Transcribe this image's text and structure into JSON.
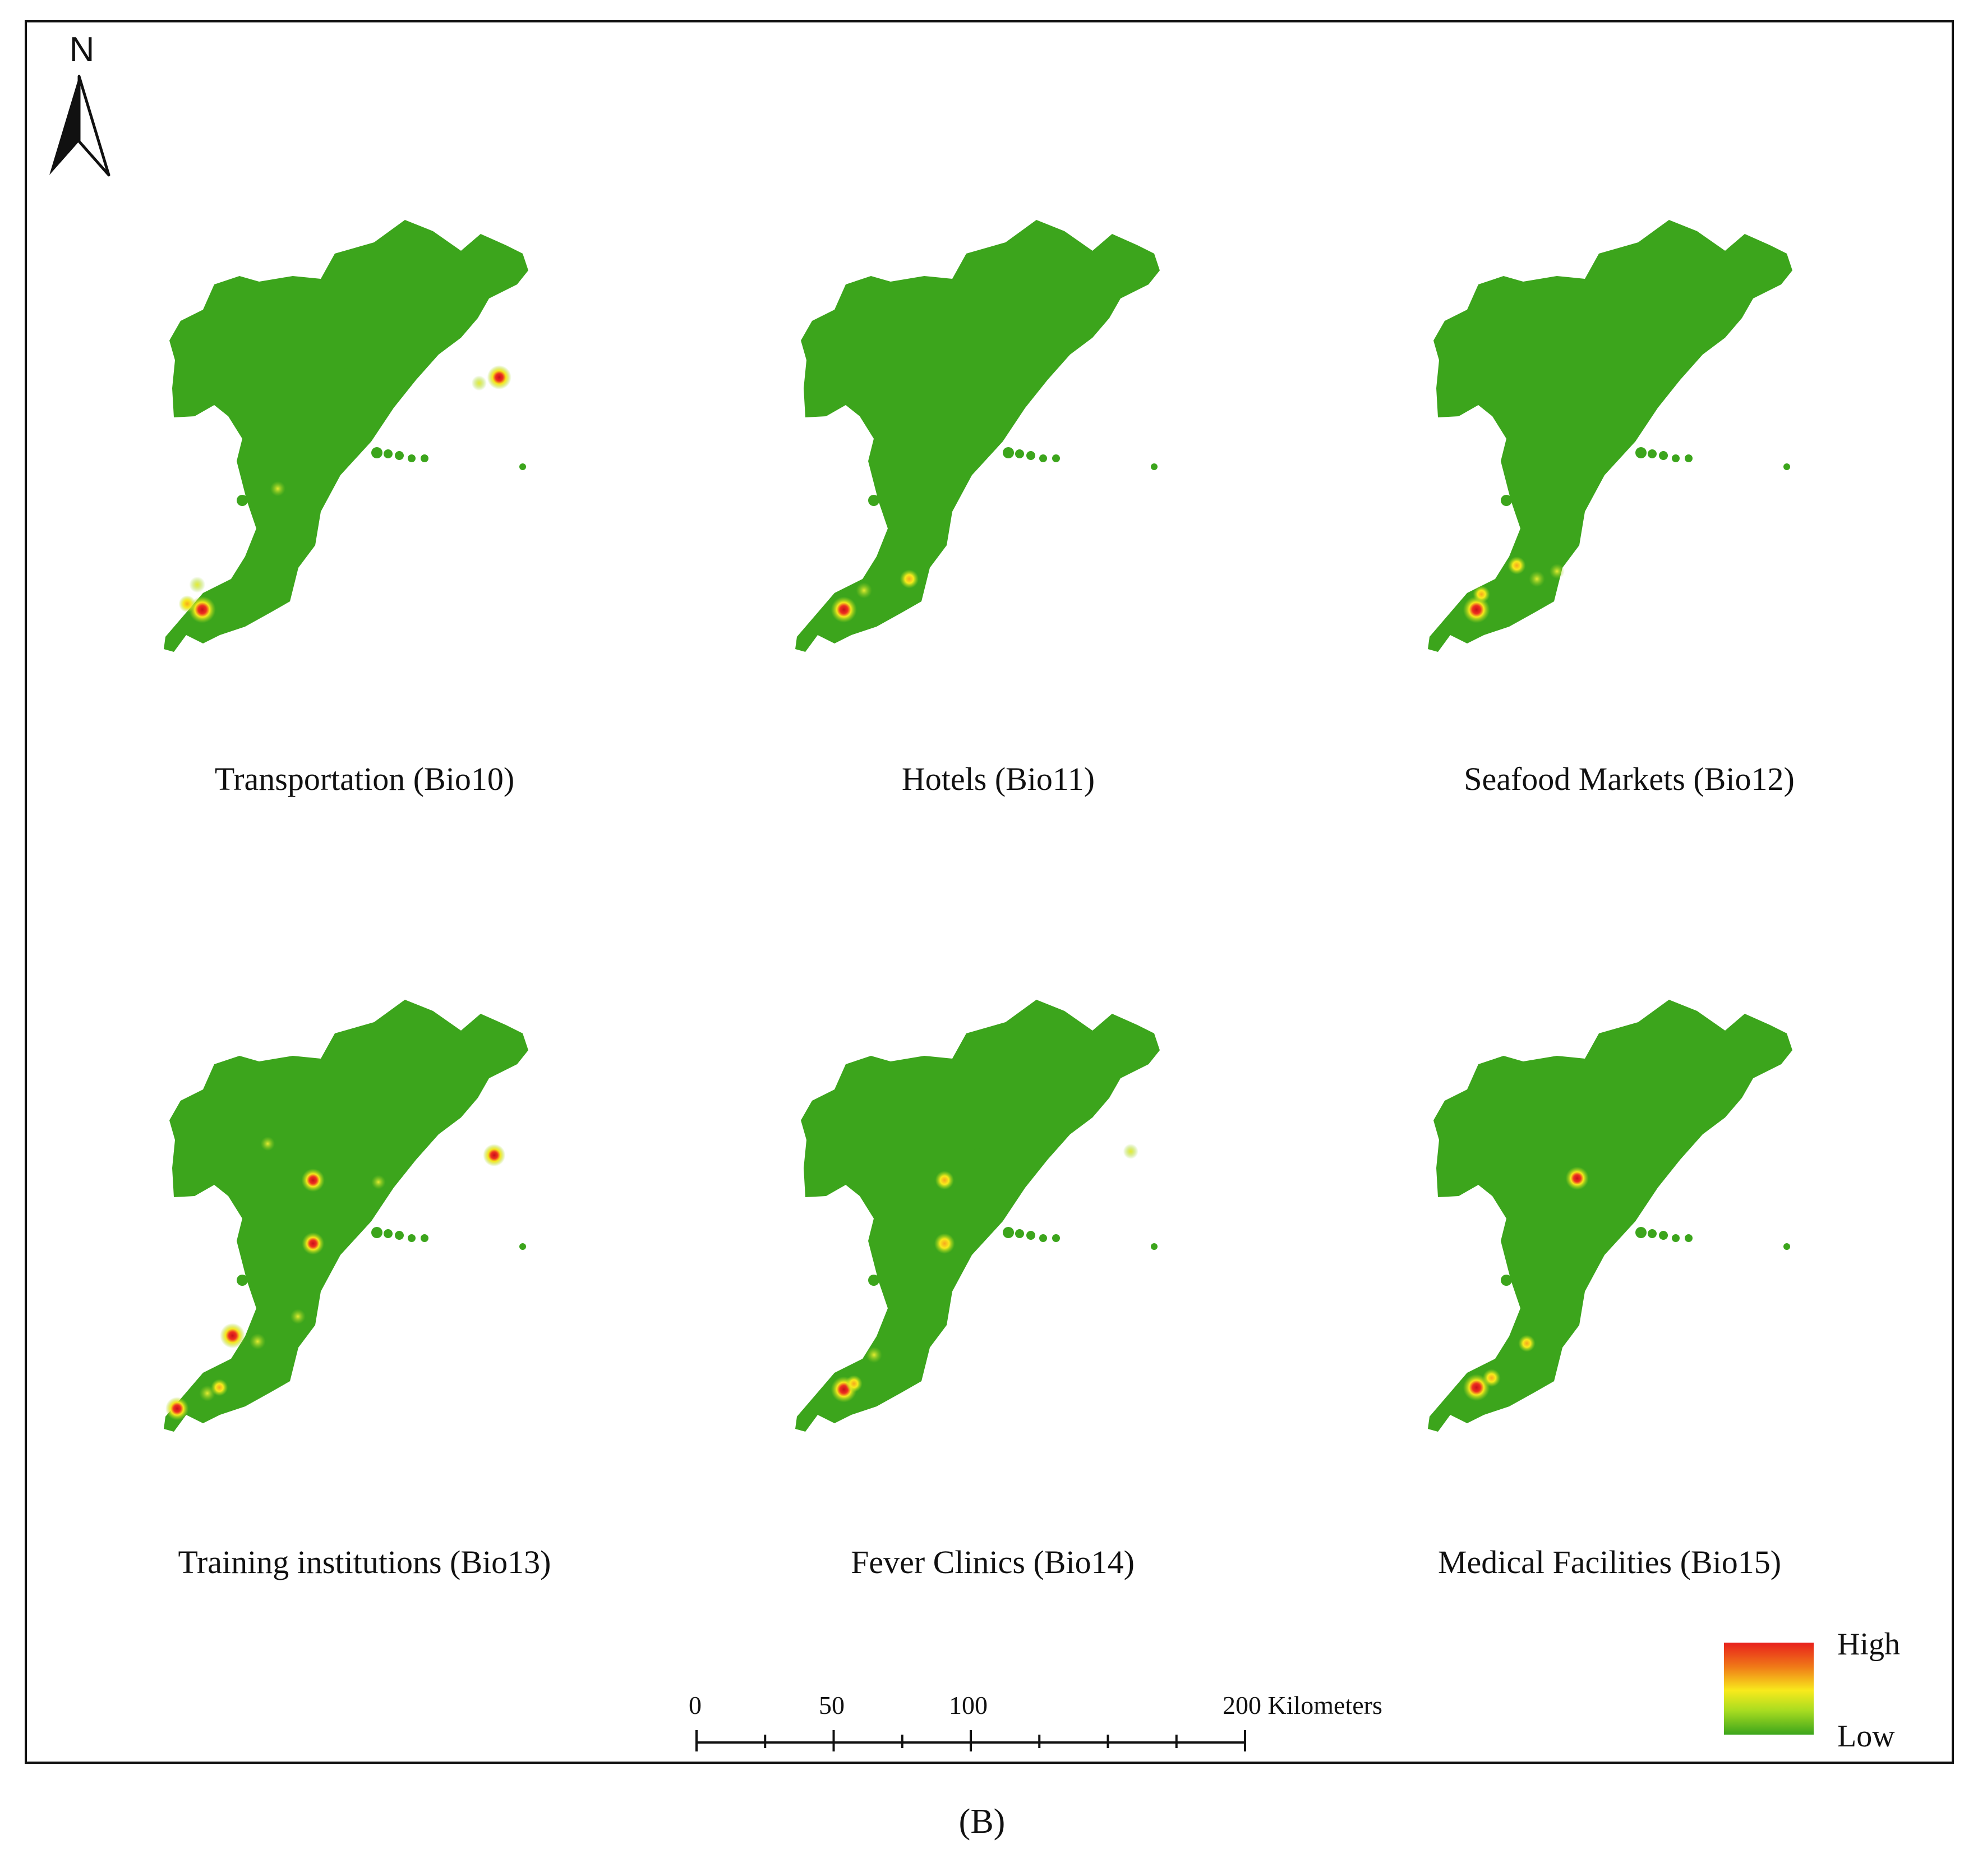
{
  "maps": [
    {
      "title": "Transportation (Bio10)",
      "hotspots": [
        {
          "lon": 121.45,
          "lat": 38.92,
          "level": 1.0
        },
        {
          "lon": 121.3,
          "lat": 38.95,
          "level": 0.45
        },
        {
          "lon": 122.2,
          "lat": 39.55,
          "level": 0.35
        },
        {
          "lon": 124.4,
          "lat": 40.13,
          "level": 0.85
        },
        {
          "lon": 124.2,
          "lat": 40.1,
          "level": 0.35
        },
        {
          "lon": 121.4,
          "lat": 39.05,
          "level": 0.4
        }
      ]
    },
    {
      "title": "Hotels (Bio11)",
      "hotspots": [
        {
          "lon": 121.55,
          "lat": 38.92,
          "level": 0.95
        },
        {
          "lon": 121.75,
          "lat": 39.02,
          "level": 0.4
        },
        {
          "lon": 122.2,
          "lat": 39.08,
          "level": 0.55
        }
      ]
    },
    {
      "title": "Seafood Markets (Bio12)",
      "hotspots": [
        {
          "lon": 121.55,
          "lat": 38.92,
          "level": 1.0
        },
        {
          "lon": 121.6,
          "lat": 39.0,
          "level": 0.45
        },
        {
          "lon": 121.95,
          "lat": 39.15,
          "level": 0.5
        },
        {
          "lon": 122.15,
          "lat": 39.08,
          "level": 0.4
        },
        {
          "lon": 122.35,
          "lat": 39.12,
          "level": 0.35
        }
      ]
    },
    {
      "title": "Training institutions (Bio13)",
      "hotspots": [
        {
          "lon": 121.75,
          "lat": 39.2,
          "level": 0.9
        },
        {
          "lon": 122.0,
          "lat": 39.17,
          "level": 0.4
        },
        {
          "lon": 122.4,
          "lat": 39.3,
          "level": 0.35
        },
        {
          "lon": 121.2,
          "lat": 38.82,
          "level": 0.8
        },
        {
          "lon": 121.5,
          "lat": 38.9,
          "level": 0.4
        },
        {
          "lon": 121.62,
          "lat": 38.93,
          "level": 0.45
        },
        {
          "lon": 122.55,
          "lat": 40.01,
          "level": 0.8
        },
        {
          "lon": 122.55,
          "lat": 39.68,
          "level": 0.75
        },
        {
          "lon": 124.35,
          "lat": 40.14,
          "level": 0.75
        },
        {
          "lon": 123.2,
          "lat": 40.0,
          "level": 0.3
        },
        {
          "lon": 122.1,
          "lat": 40.2,
          "level": 0.3
        }
      ]
    },
    {
      "title": "Fever Clinics (Bio14)",
      "hotspots": [
        {
          "lon": 121.55,
          "lat": 38.92,
          "level": 0.95
        },
        {
          "lon": 121.65,
          "lat": 38.95,
          "level": 0.45
        },
        {
          "lon": 121.85,
          "lat": 39.1,
          "level": 0.4
        },
        {
          "lon": 122.55,
          "lat": 40.01,
          "level": 0.55
        },
        {
          "lon": 122.55,
          "lat": 39.68,
          "level": 0.65
        },
        {
          "lon": 124.4,
          "lat": 40.16,
          "level": 0.35
        }
      ]
    },
    {
      "title": "Medical Facilities (Bio15)",
      "hotspots": [
        {
          "lon": 121.55,
          "lat": 38.93,
          "level": 1.0
        },
        {
          "lon": 121.7,
          "lat": 38.98,
          "level": 0.5
        },
        {
          "lon": 122.05,
          "lat": 39.16,
          "level": 0.45
        },
        {
          "lon": 122.55,
          "lat": 40.02,
          "level": 0.8
        }
      ]
    }
  ],
  "north_arrow": {
    "label": "N"
  },
  "scale_bar": {
    "unit": "Kilometers",
    "labels": [
      "0",
      "50",
      "100",
      "200 Kilometers"
    ],
    "label_values": [
      0,
      50,
      100,
      200
    ],
    "max_km": 200,
    "minor_step_km": 25
  },
  "legend": {
    "high_label": "High",
    "low_label": "Low"
  },
  "panel_label": "(B)",
  "colors": {
    "low": "#3ca51c",
    "mid": "#f8ea1c",
    "high": "#e8201c",
    "frame": "#111111"
  }
}
